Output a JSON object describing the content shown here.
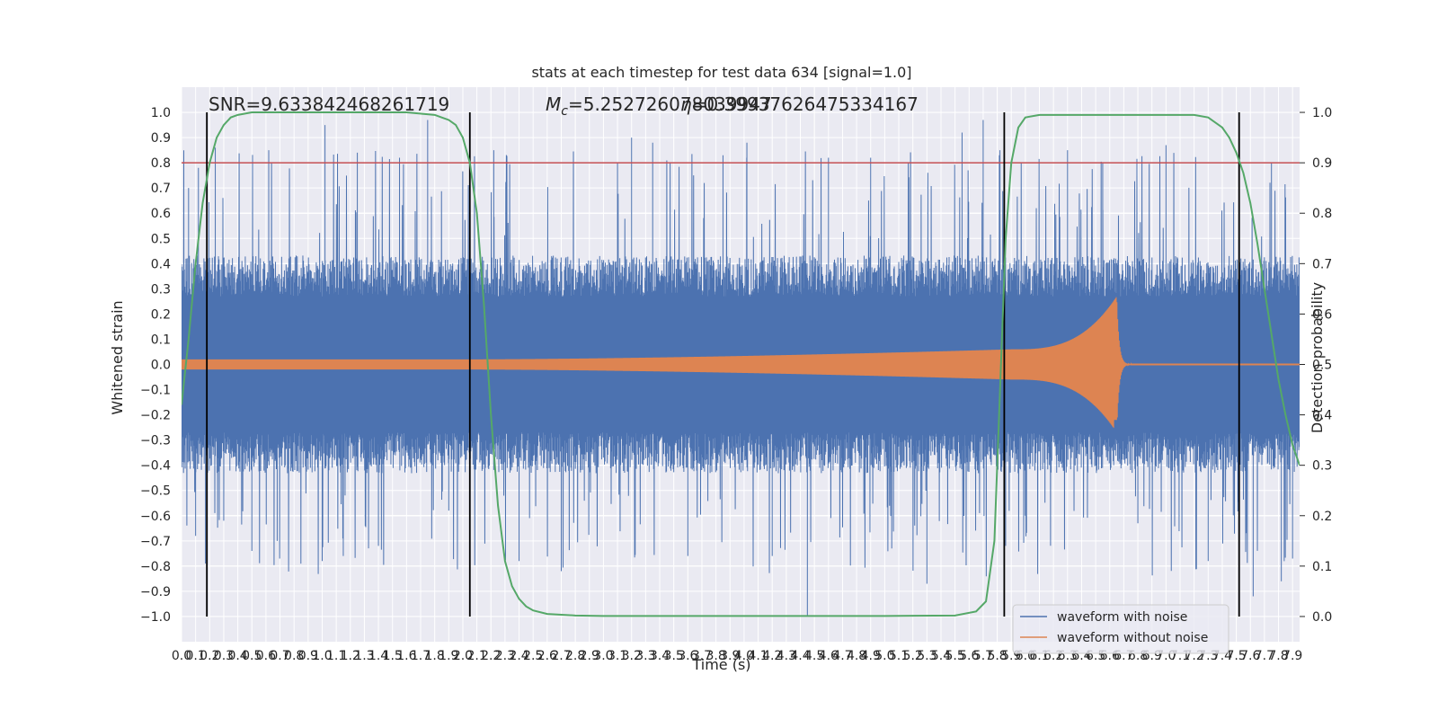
{
  "chart_data": {
    "type": "line",
    "title": "stats at each timestep for test data 634 [signal=1.0]",
    "xlabel": "Time (s)",
    "ylabel": "Whitened strain",
    "y2label": "Detection probability",
    "xlim": [
      0.0,
      7.95
    ],
    "ylim": [
      -1.1,
      1.1
    ],
    "y2lim": [
      -0.05,
      1.05
    ],
    "xticks": [
      "0.0",
      "0.1",
      "0.2",
      "0.3",
      "0.4",
      "0.5",
      "0.6",
      "0.7",
      "0.8",
      "0.9",
      "1.0",
      "1.1",
      "1.2",
      "1.3",
      "1.4",
      "1.5",
      "1.6",
      "1.7",
      "1.8",
      "1.9",
      "2.0",
      "2.1",
      "2.2",
      "2.3",
      "2.4",
      "2.5",
      "2.6",
      "2.7",
      "2.8",
      "2.9",
      "3.0",
      "3.1",
      "3.2",
      "3.3",
      "3.4",
      "3.5",
      "3.6",
      "3.7",
      "3.8",
      "3.9",
      "4.0",
      "4.1",
      "4.2",
      "4.3",
      "4.4",
      "4.5",
      "4.6",
      "4.7",
      "4.8",
      "4.9",
      "5.0",
      "5.1",
      "5.2",
      "5.3",
      "5.4",
      "5.5",
      "5.6",
      "5.7",
      "5.8",
      "5.9",
      "6.0",
      "6.1",
      "6.2",
      "6.3",
      "6.4",
      "6.5",
      "6.6",
      "6.7",
      "6.8",
      "6.9",
      "7.0",
      "7.1",
      "7.2",
      "7.3",
      "7.4",
      "7.5",
      "7.6",
      "7.7",
      "7.8",
      "7.9"
    ],
    "yticks": [
      "1.0",
      "0.9",
      "0.8",
      "0.7",
      "0.6",
      "0.5",
      "0.4",
      "0.3",
      "0.2",
      "0.1",
      "0.0",
      "-0.1",
      "-0.2",
      "-0.3",
      "-0.4",
      "-0.5",
      "-0.6",
      "-0.7",
      "-0.8",
      "-0.9",
      "-1.0"
    ],
    "y2ticks": [
      "1.0",
      "0.9",
      "0.8",
      "0.7",
      "0.6",
      "0.5",
      "0.4",
      "0.3",
      "0.2",
      "0.1",
      "0.0"
    ],
    "annotations": {
      "snr": "SNR=9.633842468261719",
      "mc": "M_c=5.252726078039947",
      "mc2": "=0.399376264753341 67"
    },
    "threshold": 0.9,
    "vlines": [
      0.18,
      2.05,
      5.85,
      7.52
    ],
    "series": [
      {
        "name": "waveform with noise",
        "color": "#4c72b0",
        "envelope": {
          "typical_amplitude": 0.36,
          "peaks": [
            {
              "x": 0.05,
              "y": 0.7
            },
            {
              "x": 0.1,
              "y": -0.68
            },
            {
              "x": 0.12,
              "y": 0.78
            },
            {
              "x": 0.17,
              "y": -0.79
            },
            {
              "x": 0.24,
              "y": 0.86
            },
            {
              "x": 0.3,
              "y": -0.62
            },
            {
              "x": 0.5,
              "y": -0.74
            },
            {
              "x": 0.62,
              "y": 0.85
            },
            {
              "x": 0.68,
              "y": -0.7
            },
            {
              "x": 1.0,
              "y": -0.78
            },
            {
              "x": 1.02,
              "y": 0.95
            },
            {
              "x": 1.15,
              "y": -0.76
            },
            {
              "x": 1.25,
              "y": 0.84
            },
            {
              "x": 1.4,
              "y": -0.72
            },
            {
              "x": 1.55,
              "y": 0.82
            },
            {
              "x": 1.75,
              "y": 0.97
            },
            {
              "x": 1.9,
              "y": -0.58
            },
            {
              "x": 2.22,
              "y": 0.85
            },
            {
              "x": 2.4,
              "y": -0.78
            },
            {
              "x": 2.7,
              "y": -0.82
            },
            {
              "x": 3.1,
              "y": 0.8
            },
            {
              "x": 3.2,
              "y": 0.9
            },
            {
              "x": 3.35,
              "y": 0.88
            },
            {
              "x": 3.6,
              "y": -0.76
            },
            {
              "x": 3.85,
              "y": 0.83
            },
            {
              "x": 4.02,
              "y": 0.88
            },
            {
              "x": 4.2,
              "y": -0.76
            },
            {
              "x": 4.45,
              "y": -1.0
            },
            {
              "x": 4.6,
              "y": 0.82
            },
            {
              "x": 4.9,
              "y": 0.82
            },
            {
              "x": 5.05,
              "y": -0.73
            },
            {
              "x": 5.3,
              "y": -0.87
            },
            {
              "x": 5.55,
              "y": 0.92
            },
            {
              "x": 5.7,
              "y": 0.97
            },
            {
              "x": 5.86,
              "y": -0.72
            },
            {
              "x": 6.0,
              "y": -0.6
            },
            {
              "x": 6.3,
              "y": 0.85
            },
            {
              "x": 6.55,
              "y": 0.8
            },
            {
              "x": 6.8,
              "y": -0.63
            },
            {
              "x": 7.0,
              "y": 0.87
            },
            {
              "x": 7.3,
              "y": -0.78
            },
            {
              "x": 7.62,
              "y": -0.92
            },
            {
              "x": 7.75,
              "y": 0.8
            },
            {
              "x": 7.82,
              "y": -0.86
            },
            {
              "x": 7.9,
              "y": -0.77
            }
          ]
        }
      },
      {
        "name": "waveform without noise",
        "color": "#dd8452",
        "chirp": {
          "start_amplitude": 0.02,
          "amplitude_at_5.9": 0.06,
          "max_amplitude": 0.27,
          "min_amplitude": -0.22,
          "merger_time": 6.65,
          "ringdown_end": 6.75
        }
      },
      {
        "name": "detection probability",
        "color": "#55a868",
        "axis": "right",
        "x": [
          0.0,
          0.05,
          0.1,
          0.15,
          0.2,
          0.25,
          0.3,
          0.35,
          0.4,
          0.5,
          0.6,
          0.8,
          1.0,
          1.2,
          1.4,
          1.6,
          1.8,
          1.85,
          1.9,
          1.95,
          2.0,
          2.05,
          2.1,
          2.15,
          2.2,
          2.25,
          2.3,
          2.35,
          2.4,
          2.45,
          2.5,
          2.6,
          2.8,
          3.0,
          3.5,
          4.0,
          4.5,
          5.0,
          5.5,
          5.65,
          5.72,
          5.78,
          5.82,
          5.86,
          5.9,
          5.95,
          6.0,
          6.1,
          6.2,
          6.5,
          7.0,
          7.2,
          7.3,
          7.4,
          7.45,
          7.5,
          7.55,
          7.6,
          7.65,
          7.7,
          7.75,
          7.8,
          7.85,
          7.9,
          7.95
        ],
        "y": [
          0.42,
          0.55,
          0.7,
          0.82,
          0.9,
          0.95,
          0.975,
          0.99,
          0.995,
          1.0,
          1.0,
          1.0,
          1.0,
          1.0,
          1.0,
          1.0,
          0.995,
          0.99,
          0.985,
          0.975,
          0.95,
          0.9,
          0.8,
          0.62,
          0.4,
          0.22,
          0.11,
          0.06,
          0.035,
          0.02,
          0.012,
          0.005,
          0.002,
          0.001,
          0.001,
          0.001,
          0.001,
          0.001,
          0.002,
          0.01,
          0.03,
          0.15,
          0.45,
          0.75,
          0.9,
          0.97,
          0.99,
          0.995,
          0.995,
          0.995,
          0.995,
          0.995,
          0.99,
          0.97,
          0.95,
          0.92,
          0.88,
          0.82,
          0.74,
          0.65,
          0.56,
          0.47,
          0.4,
          0.34,
          0.3
        ]
      }
    ],
    "legend": {
      "position": "lower-right",
      "entries": [
        "waveform with noise",
        "waveform without noise"
      ]
    },
    "grid": true
  }
}
